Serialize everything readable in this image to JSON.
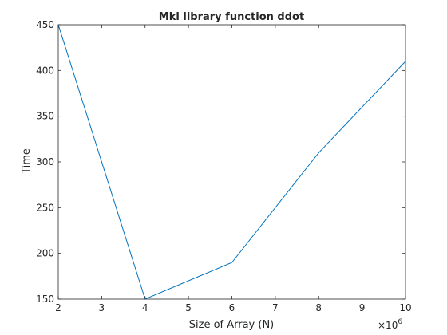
{
  "chart_data": {
    "type": "line",
    "title": "Mkl library function ddot",
    "xlabel": "Size of Array (N)",
    "ylabel": "Time",
    "x_scale_note": "×10⁶",
    "x_multiplier_base": "×10",
    "x_multiplier_exp": "6",
    "xlim": [
      2,
      10
    ],
    "ylim": [
      150,
      450
    ],
    "xticks": [
      2,
      3,
      4,
      5,
      6,
      7,
      8,
      9,
      10
    ],
    "yticks": [
      150,
      200,
      250,
      300,
      350,
      400,
      450
    ],
    "grid": false,
    "series": [
      {
        "x": [
          2000000,
          4000000,
          6000000,
          8000000,
          10000000
        ],
        "y": [
          450,
          150,
          190,
          310,
          410
        ],
        "color": "#0072bd"
      }
    ]
  }
}
